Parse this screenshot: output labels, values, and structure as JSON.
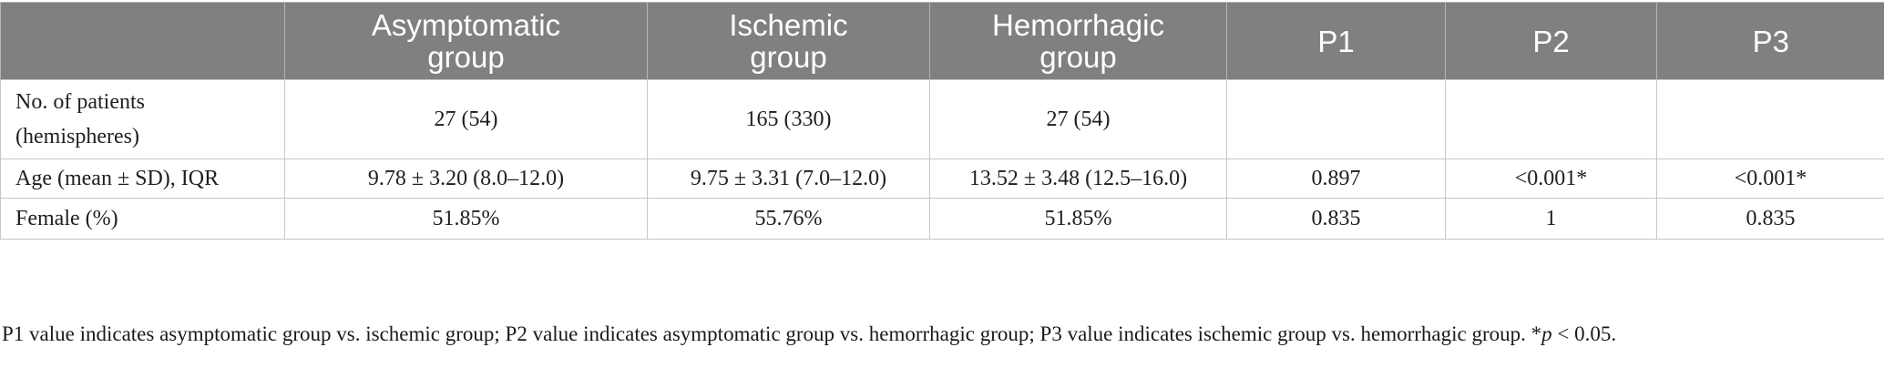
{
  "table": {
    "headers": [
      "",
      "Asymptomatic group",
      "Ischemic group",
      "Hemorrhagic group",
      "P1",
      "P2",
      "P3"
    ],
    "header_lines": [
      [],
      [
        "Asymptomatic",
        "group"
      ],
      [
        "Ischemic",
        "group"
      ],
      [
        "Hemorrhagic",
        "group"
      ],
      [
        "P1"
      ],
      [
        "P2"
      ],
      [
        "P3"
      ]
    ],
    "rows": [
      {
        "label_lines": [
          "No. of patients",
          "(hemispheres)"
        ],
        "cells": [
          "27 (54)",
          "165 (330)",
          "27 (54)",
          "",
          "",
          ""
        ]
      },
      {
        "label_lines": [
          "Age (mean ± SD), IQR"
        ],
        "cells": [
          "9.78 ± 3.20 (8.0–12.0)",
          "9.75 ± 3.31 (7.0–12.0)",
          "13.52 ± 3.48 (12.5–16.0)",
          "0.897",
          "<0.001*",
          "<0.001*"
        ]
      },
      {
        "label_lines": [
          "Female (%)"
        ],
        "cells": [
          "51.85%",
          "55.76%",
          "51.85%",
          "0.835",
          "1",
          "0.835"
        ]
      }
    ]
  },
  "footnote": {
    "text_main": "P1 value indicates asymptomatic group vs. ischemic group; P2 value indicates asymptomatic group vs. hemorrhagic group; P3 value indicates ischemic group vs. hemorrhagic group. *",
    "p_symbol": "p",
    "text_tail": " < 0.05."
  },
  "colors": {
    "header_bg": "#808080",
    "header_text": "#ffffff",
    "grid": "#c6c6c6"
  }
}
